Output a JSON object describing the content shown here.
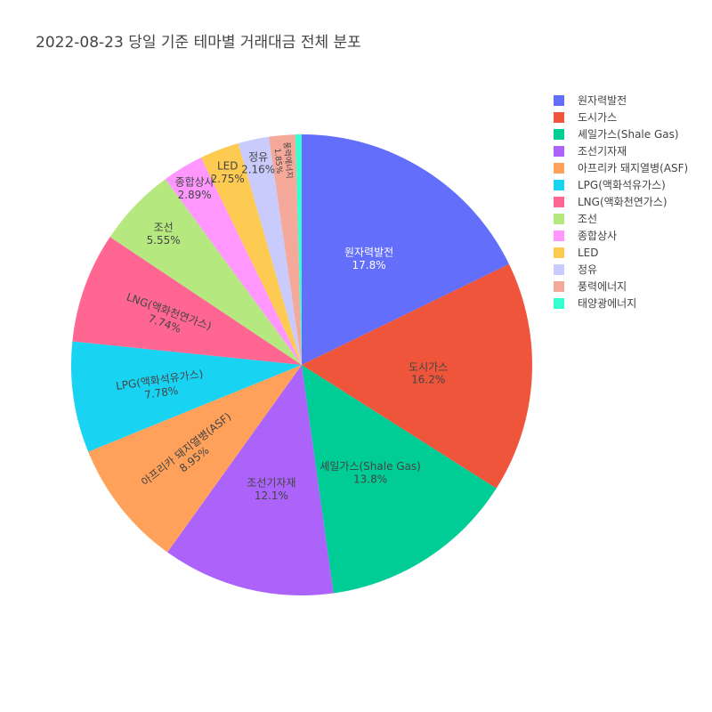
{
  "title": "2022-08-23 당일 기준 테마별 거래대금 전체 분포",
  "chart_data": {
    "type": "pie",
    "title": "2022-08-23 당일 기준 테마별 거래대금 전체 분포",
    "legend_position": "top-right",
    "slices": [
      {
        "label": "원자력발전",
        "value": 17.8,
        "percent_text": "17.8%",
        "color": "#636efa",
        "text_color": "#ffffff"
      },
      {
        "label": "도시가스",
        "value": 16.2,
        "percent_text": "16.2%",
        "color": "#ef553b",
        "text_color": "#444444"
      },
      {
        "label": "셰일가스(Shale Gas)",
        "value": 13.8,
        "percent_text": "13.8%",
        "color": "#00cc96",
        "text_color": "#444444"
      },
      {
        "label": "조선기자재",
        "value": 12.1,
        "percent_text": "12.1%",
        "color": "#ab63fa",
        "text_color": "#444444"
      },
      {
        "label": "아프리카 돼지열병(ASF)",
        "value": 8.95,
        "percent_text": "8.95%",
        "color": "#ffa15a",
        "text_color": "#444444"
      },
      {
        "label": "LPG(액화석유가스)",
        "value": 7.78,
        "percent_text": "7.78%",
        "color": "#19d3f3",
        "text_color": "#444444"
      },
      {
        "label": "LNG(액화천연가스)",
        "value": 7.74,
        "percent_text": "7.74%",
        "color": "#ff6692",
        "text_color": "#444444"
      },
      {
        "label": "조선",
        "value": 5.55,
        "percent_text": "5.55%",
        "color": "#b6e880",
        "text_color": "#444444"
      },
      {
        "label": "종합상사",
        "value": 2.89,
        "percent_text": "2.89%",
        "color": "#ff97ff",
        "text_color": "#444444"
      },
      {
        "label": "LED",
        "value": 2.75,
        "percent_text": "2.75%",
        "color": "#fecb52",
        "text_color": "#444444"
      },
      {
        "label": "정유",
        "value": 2.16,
        "percent_text": "2.16%",
        "color": "#c8cbfb",
        "text_color": "#444444"
      },
      {
        "label": "풍력에너지",
        "value": 1.85,
        "percent_text": "1.85%",
        "color": "#f4a99b",
        "text_color": "#444444"
      },
      {
        "label": "태양광에너지",
        "value": 0.43,
        "percent_text": "",
        "color": "#33ffd0",
        "text_color": "#444444"
      }
    ]
  }
}
